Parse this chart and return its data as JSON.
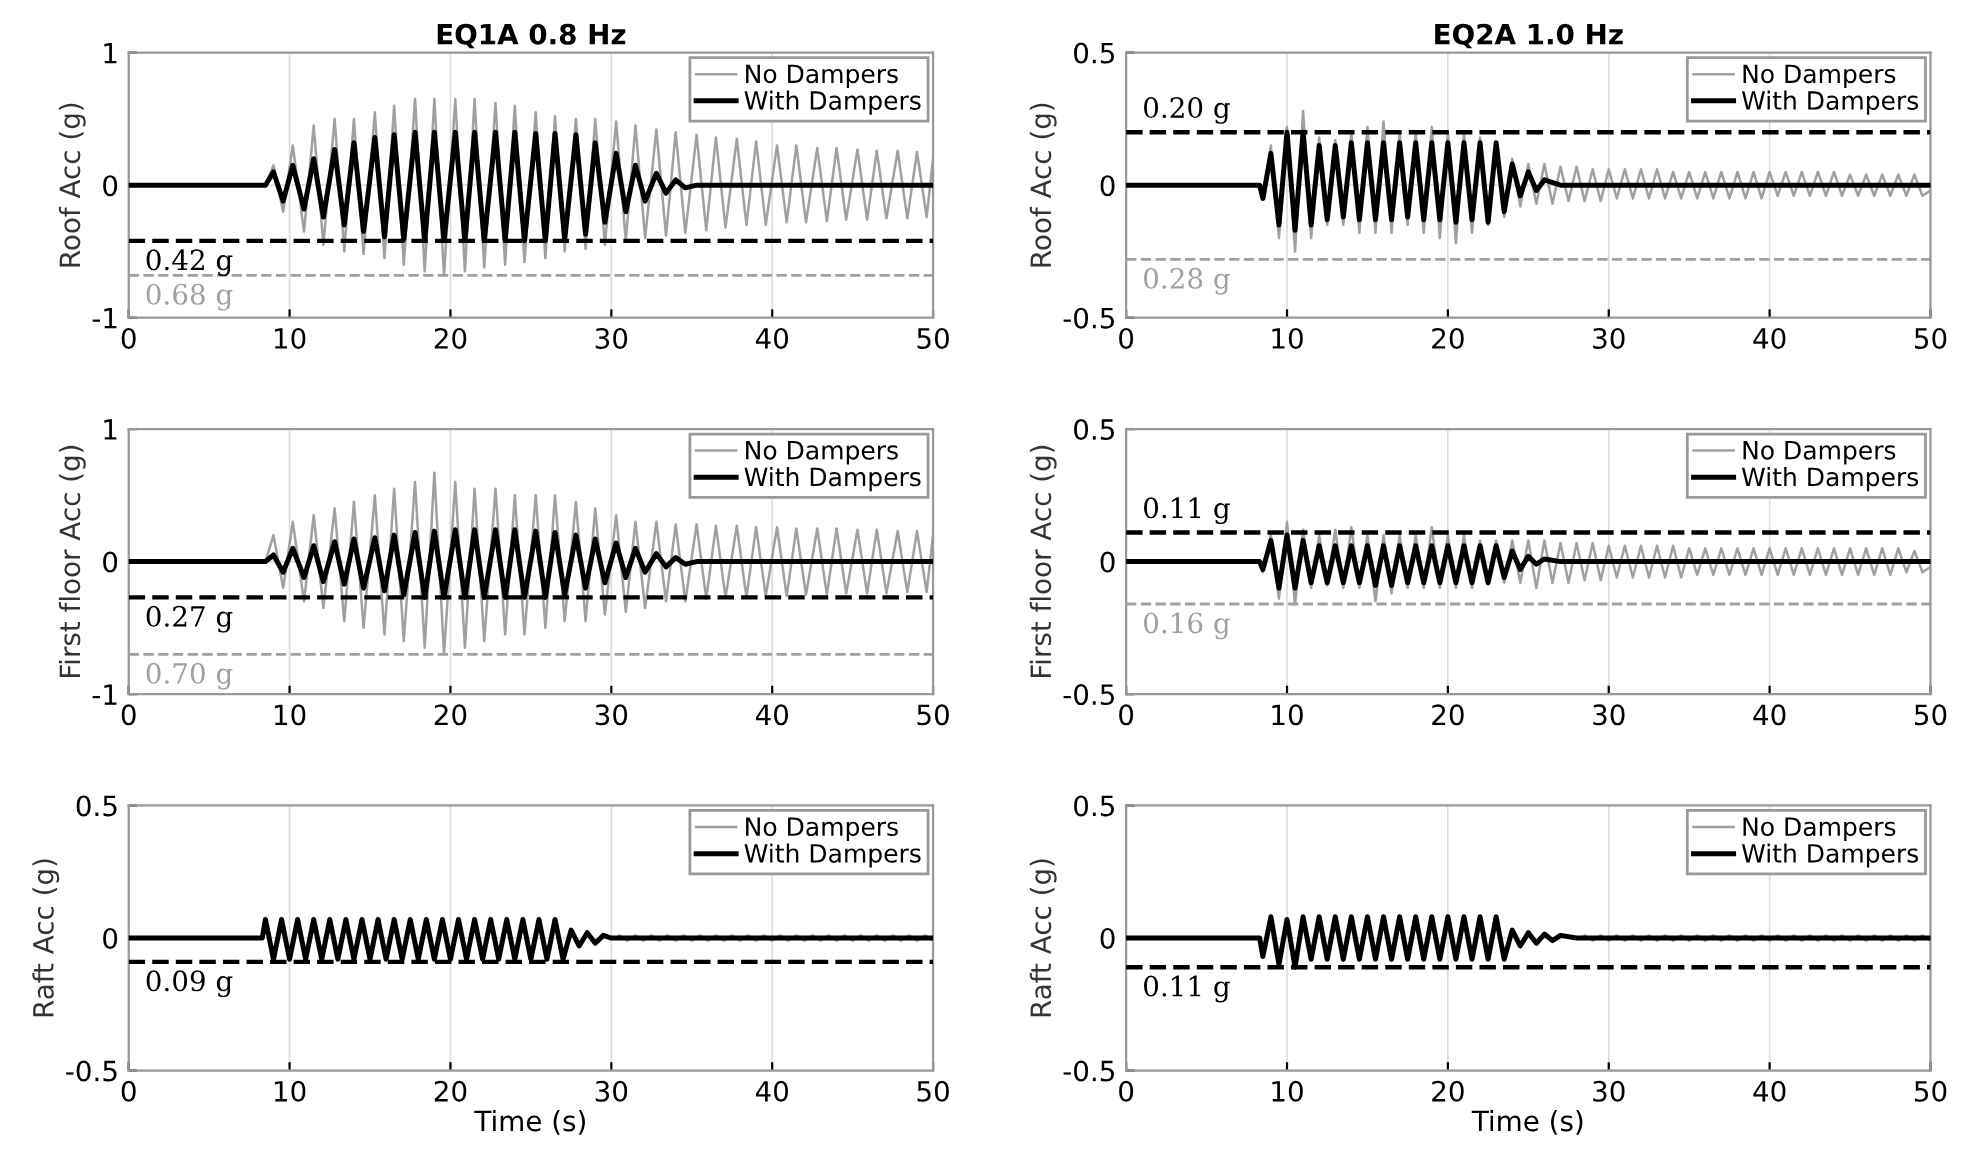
{
  "chart_data": [
    {
      "type": "line",
      "title": "EQ1A 0.8 Hz",
      "ylabel": "Roof Acc (g)",
      "xlim": [
        0,
        50
      ],
      "xticks": [
        0,
        10,
        20,
        30,
        40,
        50
      ],
      "ylim": [
        -1,
        1
      ],
      "yticks": [
        -1,
        0,
        1
      ],
      "grid": true,
      "legend": "top right",
      "series": [
        {
          "name": "No Dampers",
          "color": "#a0a0a0",
          "x": [
            0,
            8.5,
            9.0,
            9.6,
            10.2,
            10.9,
            11.5,
            12.1,
            12.8,
            13.4,
            14.0,
            14.6,
            15.3,
            15.9,
            16.5,
            17.1,
            17.8,
            18.4,
            19.0,
            19.6,
            20.3,
            20.9,
            21.5,
            22.1,
            22.8,
            23.4,
            24.0,
            24.6,
            25.3,
            25.9,
            26.5,
            27.1,
            27.8,
            28.4,
            29.0,
            29.6,
            30.3,
            30.9,
            31.5,
            32.1,
            32.8,
            33.4,
            34.0,
            34.6,
            35.3,
            35.9,
            36.5,
            37.1,
            37.8,
            38.4,
            39.0,
            39.6,
            40.3,
            40.9,
            41.5,
            42.1,
            42.8,
            43.4,
            44.0,
            44.6,
            45.3,
            45.9,
            46.5,
            47.1,
            47.8,
            48.4,
            49.0,
            49.6,
            50.0
          ],
          "values": [
            0,
            0,
            0.15,
            -0.2,
            0.3,
            -0.35,
            0.45,
            -0.45,
            0.5,
            -0.5,
            0.5,
            -0.52,
            0.55,
            -0.55,
            0.6,
            -0.6,
            0.65,
            -0.65,
            0.65,
            -0.68,
            0.65,
            -0.65,
            0.65,
            -0.62,
            0.62,
            -0.6,
            0.6,
            -0.58,
            0.55,
            -0.55,
            0.52,
            -0.5,
            0.5,
            -0.48,
            0.5,
            -0.45,
            0.48,
            -0.42,
            0.45,
            -0.4,
            0.42,
            -0.38,
            0.4,
            -0.36,
            0.38,
            -0.34,
            0.36,
            -0.32,
            0.35,
            -0.3,
            0.33,
            -0.3,
            0.3,
            -0.28,
            0.3,
            -0.28,
            0.28,
            -0.27,
            0.28,
            -0.26,
            0.27,
            -0.26,
            0.26,
            -0.25,
            0.26,
            -0.25,
            0.25,
            -0.24,
            0.2
          ]
        },
        {
          "name": "With Dampers",
          "color": "#000000",
          "x": [
            0,
            8.5,
            9.0,
            9.6,
            10.2,
            10.9,
            11.5,
            12.1,
            12.8,
            13.4,
            14.0,
            14.6,
            15.3,
            15.9,
            16.5,
            17.1,
            17.8,
            18.4,
            19.0,
            19.6,
            20.3,
            20.9,
            21.5,
            22.1,
            22.8,
            23.4,
            24.0,
            24.6,
            25.3,
            25.9,
            26.5,
            27.1,
            27.8,
            28.4,
            29.0,
            29.6,
            30.3,
            30.9,
            31.5,
            32.1,
            32.8,
            33.4,
            34.0,
            34.6,
            35.3,
            50
          ],
          "values": [
            0,
            0,
            0.1,
            -0.12,
            0.15,
            -0.18,
            0.2,
            -0.24,
            0.27,
            -0.3,
            0.32,
            -0.35,
            0.36,
            -0.39,
            0.38,
            -0.41,
            0.4,
            -0.42,
            0.4,
            -0.42,
            0.4,
            -0.42,
            0.4,
            -0.42,
            0.4,
            -0.42,
            0.4,
            -0.42,
            0.39,
            -0.42,
            0.39,
            -0.41,
            0.38,
            -0.37,
            0.32,
            -0.28,
            0.24,
            -0.2,
            0.15,
            -0.12,
            0.09,
            -0.06,
            0.04,
            -0.02,
            0,
            0
          ]
        }
      ],
      "ref_lines": [
        {
          "axis": "y",
          "value": -0.42,
          "label": "0.42 g",
          "color": "#000000",
          "line_style": "dashed"
        },
        {
          "axis": "y",
          "value": -0.68,
          "label": "0.68 g",
          "color": "#a0a0a0",
          "line_style": "dashed"
        }
      ]
    },
    {
      "type": "line",
      "ylabel": "First floor Acc (g)",
      "xlim": [
        0,
        50
      ],
      "xticks": [
        0,
        10,
        20,
        30,
        40,
        50
      ],
      "ylim": [
        -1,
        1
      ],
      "yticks": [
        -1,
        0,
        1
      ],
      "grid": true,
      "legend": "top right",
      "series": [
        {
          "name": "No Dampers",
          "color": "#a0a0a0",
          "x": [
            0,
            8.5,
            9.0,
            9.6,
            10.2,
            10.9,
            11.5,
            12.1,
            12.8,
            13.4,
            14.0,
            14.6,
            15.3,
            15.9,
            16.5,
            17.1,
            17.8,
            18.4,
            19.0,
            19.6,
            20.3,
            20.9,
            21.5,
            22.1,
            22.8,
            23.4,
            24.0,
            24.6,
            25.3,
            25.9,
            26.5,
            27.1,
            27.8,
            28.4,
            29.0,
            29.6,
            30.3,
            30.9,
            31.5,
            32.1,
            32.8,
            33.4,
            34.0,
            34.6,
            35.3,
            35.9,
            36.5,
            37.1,
            37.8,
            38.4,
            39.0,
            39.6,
            40.3,
            40.9,
            41.5,
            42.1,
            42.8,
            43.4,
            44.0,
            44.6,
            45.3,
            45.9,
            46.5,
            47.1,
            47.8,
            48.4,
            49.0,
            49.6,
            50.0
          ],
          "values": [
            0,
            0,
            0.2,
            -0.2,
            0.3,
            -0.3,
            0.35,
            -0.35,
            0.4,
            -0.45,
            0.45,
            -0.5,
            0.5,
            -0.55,
            0.55,
            -0.6,
            0.6,
            -0.65,
            0.67,
            -0.7,
            0.6,
            -0.65,
            0.55,
            -0.6,
            0.55,
            -0.55,
            0.5,
            -0.55,
            0.5,
            -0.5,
            0.5,
            -0.45,
            0.45,
            -0.45,
            0.4,
            -0.4,
            0.35,
            -0.38,
            0.3,
            -0.35,
            0.3,
            -0.3,
            0.28,
            -0.3,
            0.28,
            -0.28,
            0.27,
            -0.27,
            0.27,
            -0.27,
            0.26,
            -0.26,
            0.26,
            -0.26,
            0.25,
            -0.25,
            0.25,
            -0.25,
            0.25,
            -0.24,
            0.24,
            -0.24,
            0.24,
            -0.24,
            0.23,
            -0.23,
            0.23,
            -0.23,
            0.2
          ]
        },
        {
          "name": "With Dampers",
          "color": "#000000",
          "x": [
            0,
            8.5,
            9.0,
            9.6,
            10.2,
            10.9,
            11.5,
            12.1,
            12.8,
            13.4,
            14.0,
            14.6,
            15.3,
            15.9,
            16.5,
            17.1,
            17.8,
            18.4,
            19.0,
            19.6,
            20.3,
            20.9,
            21.5,
            22.1,
            22.8,
            23.4,
            24.0,
            24.6,
            25.3,
            25.9,
            26.5,
            27.1,
            27.8,
            28.4,
            29.0,
            29.6,
            30.3,
            30.9,
            31.5,
            32.1,
            32.8,
            33.4,
            34.0,
            34.6,
            35.3,
            50
          ],
          "values": [
            0,
            0,
            0.05,
            -0.08,
            0.1,
            -0.12,
            0.12,
            -0.15,
            0.15,
            -0.17,
            0.17,
            -0.2,
            0.18,
            -0.22,
            0.2,
            -0.25,
            0.22,
            -0.27,
            0.23,
            -0.27,
            0.24,
            -0.27,
            0.24,
            -0.27,
            0.24,
            -0.27,
            0.24,
            -0.27,
            0.23,
            -0.27,
            0.22,
            -0.25,
            0.2,
            -0.2,
            0.17,
            -0.16,
            0.14,
            -0.12,
            0.1,
            -0.08,
            0.06,
            -0.04,
            0.03,
            -0.02,
            0,
            0
          ]
        }
      ],
      "ref_lines": [
        {
          "axis": "y",
          "value": -0.27,
          "label": "0.27 g",
          "color": "#000000",
          "line_style": "dashed"
        },
        {
          "axis": "y",
          "value": -0.7,
          "label": "0.70 g",
          "color": "#a0a0a0",
          "line_style": "dashed"
        }
      ]
    },
    {
      "type": "line",
      "ylabel": "Raft Acc (g)",
      "xlabel": "Time (s)",
      "xlim": [
        0,
        50
      ],
      "xticks": [
        0,
        10,
        20,
        30,
        40,
        50
      ],
      "ylim": [
        -0.5,
        0.5
      ],
      "yticks": [
        -0.5,
        0,
        0.5
      ],
      "grid": true,
      "legend": "top right",
      "series": [
        {
          "name": "No Dampers",
          "color": "#a0a0a0",
          "x": [
            30.5,
            31.0,
            31.5,
            32.0,
            32.5,
            33.0,
            33.5,
            34.0,
            34.5,
            35.0,
            35.5,
            36.0,
            36.5,
            37.0,
            37.5,
            38.0,
            38.5,
            39.0,
            39.5,
            40.0,
            40.5,
            41.0,
            41.5,
            42.0,
            42.5,
            43.0,
            43.5,
            44.0,
            44.5,
            45.0,
            45.5,
            46.0,
            46.5,
            47.0,
            47.5,
            48.0,
            48.5,
            49.0,
            49.5,
            50.0
          ],
          "values": [
            0.01,
            -0.01,
            0.01,
            -0.01,
            0.01,
            -0.01,
            0.01,
            -0.01,
            0.01,
            -0.01,
            0.01,
            -0.01,
            0.01,
            -0.01,
            0.01,
            -0.01,
            0.01,
            -0.01,
            0.01,
            -0.01,
            0.01,
            -0.01,
            0.01,
            -0.01,
            0.01,
            -0.01,
            0.01,
            -0.01,
            0.01,
            -0.01,
            0.01,
            -0.01,
            0.01,
            -0.01,
            0.01,
            -0.01,
            0.01,
            -0.01,
            0.01,
            -0.01
          ]
        },
        {
          "name": "With Dampers",
          "color": "#000000",
          "x": [
            0,
            8.3,
            8.5,
            9.0,
            9.5,
            10.0,
            10.5,
            11.0,
            11.5,
            12.0,
            12.5,
            13.0,
            13.5,
            14.0,
            14.5,
            15.0,
            15.5,
            16.0,
            16.5,
            17.0,
            17.5,
            18.0,
            18.5,
            19.0,
            19.5,
            20.0,
            20.5,
            21.0,
            21.5,
            22.0,
            22.5,
            23.0,
            23.5,
            24.0,
            24.5,
            25.0,
            25.5,
            26.0,
            26.5,
            27.0,
            27.5,
            28.0,
            28.5,
            29.0,
            29.5,
            30.0,
            50
          ],
          "values": [
            0,
            0,
            0.07,
            -0.08,
            0.07,
            -0.08,
            0.07,
            -0.08,
            0.07,
            -0.08,
            0.07,
            -0.08,
            0.07,
            -0.08,
            0.07,
            -0.08,
            0.07,
            -0.08,
            0.07,
            -0.08,
            0.07,
            -0.08,
            0.07,
            -0.08,
            0.07,
            -0.08,
            0.07,
            -0.08,
            0.07,
            -0.08,
            0.07,
            -0.08,
            0.07,
            -0.08,
            0.07,
            -0.08,
            0.07,
            -0.08,
            0.07,
            -0.08,
            0.03,
            -0.03,
            0.02,
            -0.02,
            0.01,
            0,
            0
          ]
        }
      ],
      "ref_lines": [
        {
          "axis": "y",
          "value": -0.09,
          "label": "0.09 g",
          "color": "#000000",
          "line_style": "dashed"
        }
      ]
    },
    {
      "type": "line",
      "title": "EQ2A 1.0 Hz",
      "ylabel": "Roof Acc (g)",
      "xlim": [
        0,
        50
      ],
      "xticks": [
        0,
        10,
        20,
        30,
        40,
        50
      ],
      "ylim": [
        -0.5,
        0.5
      ],
      "yticks": [
        -0.5,
        0,
        0.5
      ],
      "grid": true,
      "legend": "top right",
      "series": [
        {
          "name": "No Dampers",
          "color": "#a0a0a0",
          "x": [
            0,
            8.3,
            8.5,
            9.0,
            9.5,
            10.0,
            10.5,
            11.0,
            11.5,
            12.0,
            12.5,
            13.0,
            13.5,
            14.0,
            14.5,
            15.0,
            15.5,
            16.0,
            16.5,
            17.0,
            17.5,
            18.0,
            18.5,
            19.0,
            19.5,
            20.0,
            20.5,
            21.0,
            21.5,
            22.0,
            22.5,
            23.0,
            23.5,
            24.0,
            24.5,
            25.0,
            25.5,
            26.0,
            26.5,
            27.0,
            27.5,
            28.0,
            28.5,
            29.0,
            29.5,
            30.0,
            30.5,
            31.0,
            31.5,
            32.0,
            32.5,
            33.0,
            33.5,
            34.0,
            34.5,
            35.0,
            35.5,
            36.0,
            36.5,
            37.0,
            37.5,
            38.0,
            38.5,
            39.0,
            39.5,
            40.0,
            40.5,
            41.0,
            41.5,
            42.0,
            42.5,
            43.0,
            43.5,
            44.0,
            44.5,
            45.0,
            45.5,
            46.0,
            46.5,
            47.0,
            47.5,
            48.0,
            48.5,
            49.0,
            49.5,
            50.0
          ],
          "values": [
            0,
            0,
            -0.05,
            0.15,
            -0.2,
            0.22,
            -0.25,
            0.28,
            -0.2,
            0.18,
            -0.15,
            0.17,
            -0.15,
            0.2,
            -0.18,
            0.22,
            -0.18,
            0.24,
            -0.18,
            0.2,
            -0.15,
            0.2,
            -0.18,
            0.22,
            -0.2,
            0.2,
            -0.22,
            0.2,
            -0.18,
            0.18,
            -0.15,
            0.15,
            -0.12,
            0.1,
            -0.08,
            0.08,
            -0.07,
            0.08,
            -0.07,
            0.07,
            -0.06,
            0.07,
            -0.06,
            0.06,
            -0.06,
            0.06,
            -0.05,
            0.06,
            -0.05,
            0.06,
            -0.05,
            0.06,
            -0.05,
            0.05,
            -0.05,
            0.05,
            -0.05,
            0.05,
            -0.05,
            0.05,
            -0.05,
            0.05,
            -0.05,
            0.05,
            -0.05,
            0.05,
            -0.04,
            0.05,
            -0.04,
            0.05,
            -0.04,
            0.05,
            -0.04,
            0.05,
            -0.04,
            0.04,
            -0.04,
            0.04,
            -0.04,
            0.04,
            -0.04,
            0.04,
            -0.04,
            0.04,
            -0.04,
            -0.02
          ]
        },
        {
          "name": "With Dampers",
          "color": "#000000",
          "x": [
            0,
            8.3,
            8.5,
            9.0,
            9.5,
            10.0,
            10.5,
            11.0,
            11.5,
            12.0,
            12.5,
            13.0,
            13.5,
            14.0,
            14.5,
            15.0,
            15.5,
            16.0,
            16.5,
            17.0,
            17.5,
            18.0,
            18.5,
            19.0,
            19.5,
            20.0,
            20.5,
            21.0,
            21.5,
            22.0,
            22.5,
            23.0,
            23.5,
            24.0,
            24.5,
            25.0,
            25.5,
            26.0,
            27.0,
            50
          ],
          "values": [
            0,
            0,
            -0.05,
            0.12,
            -0.15,
            0.2,
            -0.17,
            0.2,
            -0.15,
            0.15,
            -0.13,
            0.15,
            -0.12,
            0.16,
            -0.13,
            0.16,
            -0.13,
            0.16,
            -0.13,
            0.16,
            -0.12,
            0.16,
            -0.13,
            0.16,
            -0.13,
            0.16,
            -0.14,
            0.16,
            -0.13,
            0.16,
            -0.14,
            0.16,
            -0.1,
            0.08,
            -0.04,
            0.05,
            -0.02,
            0.02,
            0,
            0
          ]
        }
      ],
      "ref_lines": [
        {
          "axis": "y",
          "value": 0.2,
          "label": "0.20 g",
          "color": "#000000",
          "line_style": "dashed"
        },
        {
          "axis": "y",
          "value": -0.28,
          "label": "0.28 g",
          "color": "#a0a0a0",
          "line_style": "dashed"
        }
      ]
    },
    {
      "type": "line",
      "ylabel": "First floor Acc (g)",
      "xlim": [
        0,
        50
      ],
      "xticks": [
        0,
        10,
        20,
        30,
        40,
        50
      ],
      "ylim": [
        -0.5,
        0.5
      ],
      "yticks": [
        -0.5,
        0,
        0.5
      ],
      "grid": true,
      "legend": "top right",
      "series": [
        {
          "name": "No Dampers",
          "color": "#a0a0a0",
          "x": [
            0,
            8.3,
            8.5,
            9.0,
            9.5,
            10.0,
            10.5,
            11.0,
            11.5,
            12.0,
            12.5,
            13.0,
            13.5,
            14.0,
            14.5,
            15.0,
            15.5,
            16.0,
            16.5,
            17.0,
            17.5,
            18.0,
            18.5,
            19.0,
            19.5,
            20.0,
            20.5,
            21.0,
            21.5,
            22.0,
            22.5,
            23.0,
            23.5,
            24.0,
            24.5,
            25.0,
            25.5,
            26.0,
            26.5,
            27.0,
            27.5,
            28.0,
            28.5,
            29.0,
            29.5,
            30.0,
            30.5,
            31.0,
            31.5,
            32.0,
            32.5,
            33.0,
            33.5,
            34.0,
            34.5,
            35.0,
            35.5,
            36.0,
            36.5,
            37.0,
            37.5,
            38.0,
            38.5,
            39.0,
            39.5,
            40.0,
            40.5,
            41.0,
            41.5,
            42.0,
            42.5,
            43.0,
            43.5,
            44.0,
            44.5,
            45.0,
            45.5,
            46.0,
            46.5,
            47.0,
            47.5,
            48.0,
            48.5,
            49.0,
            49.5,
            50.0
          ],
          "values": [
            0,
            0,
            -0.04,
            0.1,
            -0.14,
            0.15,
            -0.16,
            0.12,
            -0.1,
            0.1,
            -0.09,
            0.12,
            -0.1,
            0.13,
            -0.1,
            0.1,
            -0.15,
            0.1,
            -0.12,
            0.1,
            -0.1,
            0.1,
            -0.1,
            0.13,
            -0.1,
            0.1,
            -0.1,
            0.1,
            -0.1,
            0.08,
            -0.08,
            0.08,
            -0.08,
            0.08,
            -0.08,
            0.08,
            -0.1,
            0.08,
            -0.08,
            0.07,
            -0.08,
            0.07,
            -0.07,
            0.07,
            -0.07,
            0.06,
            -0.06,
            0.06,
            -0.06,
            0.06,
            -0.06,
            0.06,
            -0.06,
            0.06,
            -0.06,
            0.05,
            -0.05,
            0.05,
            -0.05,
            0.05,
            -0.05,
            0.05,
            -0.05,
            0.05,
            -0.05,
            0.05,
            -0.05,
            0.05,
            -0.05,
            0.05,
            -0.05,
            0.05,
            -0.05,
            0.05,
            -0.05,
            0.05,
            -0.05,
            0.05,
            -0.05,
            0.05,
            -0.05,
            0.05,
            -0.04,
            0.04,
            -0.04,
            -0.02
          ]
        },
        {
          "name": "With Dampers",
          "color": "#000000",
          "x": [
            0,
            8.3,
            8.5,
            9.0,
            9.5,
            10.0,
            10.5,
            11.0,
            11.5,
            12.0,
            12.5,
            13.0,
            13.5,
            14.0,
            14.5,
            15.0,
            15.5,
            16.0,
            16.5,
            17.0,
            17.5,
            18.0,
            18.5,
            19.0,
            19.5,
            20.0,
            20.5,
            21.0,
            21.5,
            22.0,
            22.5,
            23.0,
            23.5,
            24.0,
            24.5,
            25.0,
            25.5,
            26.0,
            27.0,
            50
          ],
          "values": [
            0,
            0,
            -0.03,
            0.08,
            -0.1,
            0.1,
            -0.1,
            0.08,
            -0.08,
            0.06,
            -0.08,
            0.06,
            -0.08,
            0.06,
            -0.08,
            0.06,
            -0.09,
            0.06,
            -0.09,
            0.06,
            -0.08,
            0.06,
            -0.08,
            0.06,
            -0.08,
            0.06,
            -0.08,
            0.06,
            -0.08,
            0.06,
            -0.08,
            0.06,
            -0.06,
            0.04,
            -0.03,
            0.02,
            -0.01,
            0.01,
            0,
            0
          ]
        }
      ],
      "ref_lines": [
        {
          "axis": "y",
          "value": 0.11,
          "label": "0.11 g",
          "color": "#000000",
          "line_style": "dashed"
        },
        {
          "axis": "y",
          "value": -0.16,
          "label": "0.16 g",
          "color": "#a0a0a0",
          "line_style": "dashed"
        }
      ]
    },
    {
      "type": "line",
      "ylabel": "Raft Acc (g)",
      "xlabel": "Time (s)",
      "xlim": [
        0,
        50
      ],
      "xticks": [
        0,
        10,
        20,
        30,
        40,
        50
      ],
      "ylim": [
        -0.5,
        0.5
      ],
      "yticks": [
        -0.5,
        0,
        0.5
      ],
      "grid": true,
      "legend": "top right",
      "series": [
        {
          "name": "No Dampers",
          "color": "#a0a0a0",
          "x": [
            28.5,
            29.0,
            29.5,
            30.0,
            30.5,
            31.0,
            31.5,
            32.0,
            32.5,
            33.0,
            33.5,
            34.0,
            34.5,
            35.0,
            35.5,
            36.0,
            36.5,
            37.0,
            37.5,
            38.0,
            38.5,
            39.0,
            39.5,
            40.0,
            40.5,
            41.0,
            41.5,
            42.0,
            42.5,
            43.0,
            43.5,
            44.0,
            44.5,
            45.0,
            45.5,
            46.0,
            46.5,
            47.0,
            47.5,
            48.0,
            48.5,
            49.0,
            49.5,
            50.0
          ],
          "values": [
            0.01,
            -0.01,
            0.01,
            -0.01,
            0.01,
            -0.01,
            0.01,
            -0.01,
            0.01,
            -0.01,
            0.01,
            -0.01,
            0.01,
            -0.01,
            0.01,
            -0.01,
            0.01,
            -0.01,
            0.01,
            -0.01,
            0.01,
            -0.01,
            0.01,
            -0.01,
            0.01,
            -0.01,
            0.01,
            -0.01,
            0.01,
            -0.01,
            0.01,
            -0.01,
            0.01,
            -0.01,
            0.01,
            -0.01,
            0.01,
            -0.01,
            0.01,
            -0.01,
            0.01,
            -0.01,
            0.01,
            -0.01
          ]
        },
        {
          "name": "With Dampers",
          "color": "#000000",
          "x": [
            0,
            8.3,
            8.5,
            9.0,
            9.5,
            10.0,
            10.5,
            11.0,
            11.5,
            12.0,
            12.5,
            13.0,
            13.5,
            14.0,
            14.5,
            15.0,
            15.5,
            16.0,
            16.5,
            17.0,
            17.5,
            18.0,
            18.5,
            19.0,
            19.5,
            20.0,
            20.5,
            21.0,
            21.5,
            22.0,
            22.5,
            23.0,
            23.5,
            24.0,
            24.5,
            25.0,
            25.5,
            26.0,
            26.5,
            27.0,
            28.0,
            50
          ],
          "values": [
            0,
            0,
            -0.07,
            0.08,
            -0.1,
            0.07,
            -0.11,
            0.08,
            -0.08,
            0.08,
            -0.08,
            0.08,
            -0.08,
            0.08,
            -0.08,
            0.08,
            -0.08,
            0.08,
            -0.08,
            0.08,
            -0.08,
            0.08,
            -0.08,
            0.08,
            -0.08,
            0.08,
            -0.08,
            0.08,
            -0.08,
            0.08,
            -0.08,
            0.08,
            -0.08,
            0.03,
            -0.03,
            0.02,
            -0.02,
            0.015,
            -0.01,
            0.01,
            0,
            0
          ]
        }
      ],
      "ref_lines": [
        {
          "axis": "y",
          "value": -0.11,
          "label": "0.11 g",
          "color": "#000000",
          "line_style": "dashed"
        }
      ]
    }
  ]
}
